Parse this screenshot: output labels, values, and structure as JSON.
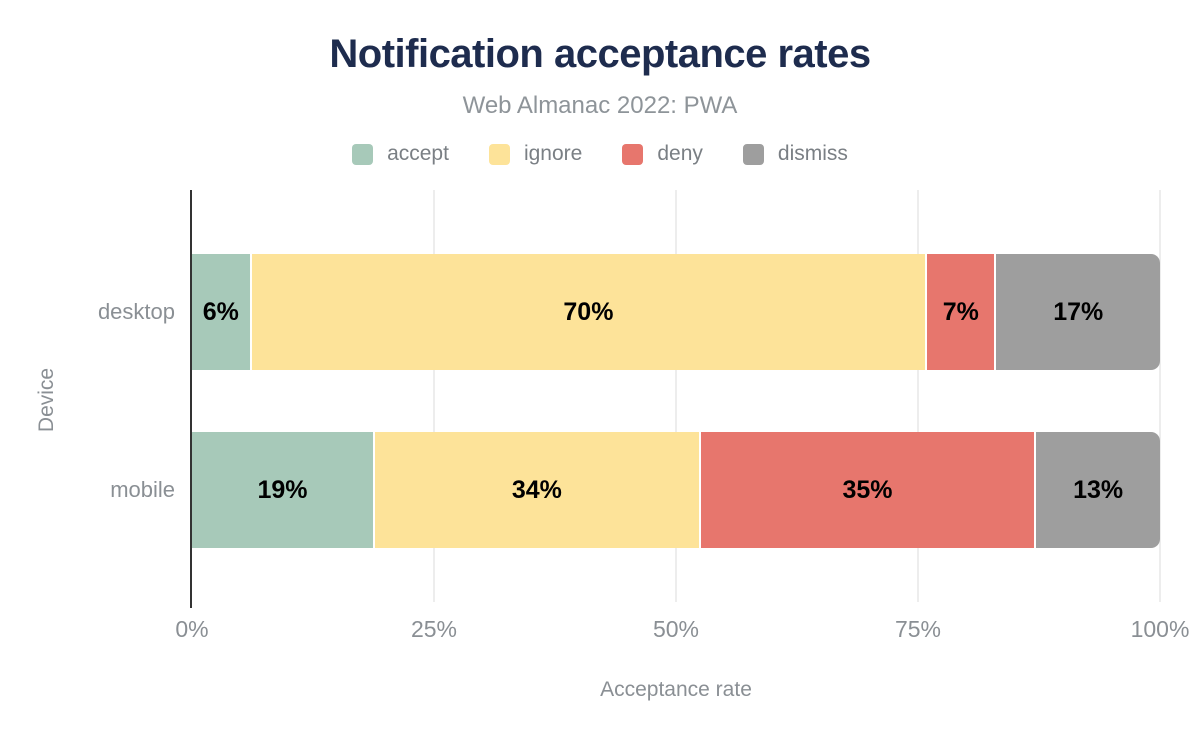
{
  "chart_data": {
    "type": "bar",
    "orientation": "horizontal",
    "stacked": true,
    "title": "Notification acceptance rates",
    "subtitle": "Web Almanac 2022: PWA",
    "xlabel": "Acceptance rate",
    "ylabel": "Device",
    "xlim": [
      0,
      100
    ],
    "grid": "vertical",
    "legend_position": "top",
    "categories": [
      "desktop",
      "mobile"
    ],
    "series": [
      {
        "name": "accept",
        "color": "#a7c9b9",
        "values": [
          6,
          19
        ]
      },
      {
        "name": "ignore",
        "color": "#fde399",
        "values": [
          70,
          34
        ]
      },
      {
        "name": "deny",
        "color": "#e7766d",
        "values": [
          7,
          35
        ]
      },
      {
        "name": "dismiss",
        "color": "#9e9e9e",
        "values": [
          17,
          13
        ]
      }
    ],
    "data_labels": [
      [
        "6%",
        "70%",
        "7%",
        "17%"
      ],
      [
        "19%",
        "34%",
        "35%",
        "13%"
      ]
    ],
    "x_ticks": [
      {
        "label": "0%",
        "value": 0
      },
      {
        "label": "25%",
        "value": 25
      },
      {
        "label": "50%",
        "value": 50
      },
      {
        "label": "75%",
        "value": 75
      },
      {
        "label": "100%",
        "value": 100
      }
    ]
  },
  "colors": {
    "title": "#1e2c4e",
    "subtitle": "#8e9499",
    "axis_text": "#8a8f94",
    "axis_line": "#333333",
    "gridline": "#ededed",
    "data_label": "#000000",
    "background": "#ffffff"
  }
}
